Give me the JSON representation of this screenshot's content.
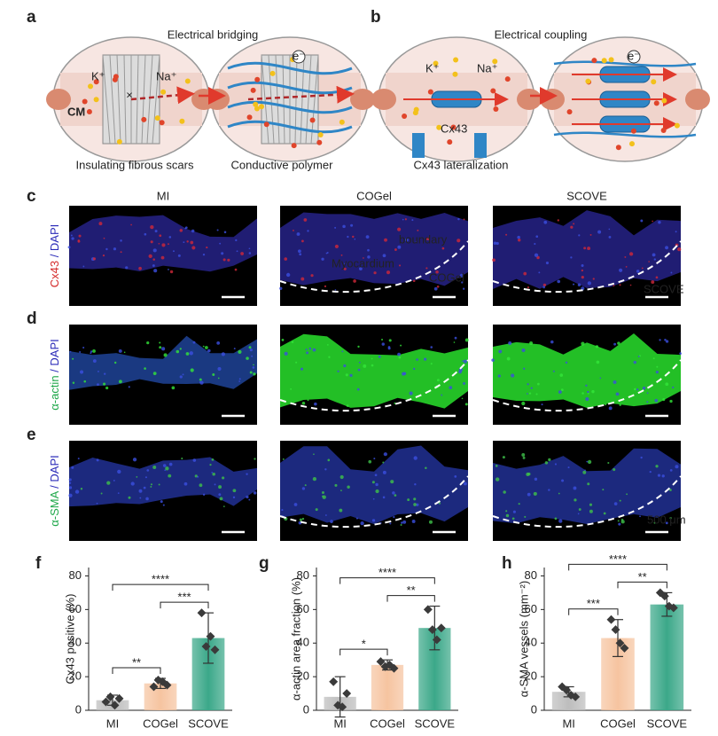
{
  "panels": {
    "a": {
      "letter": "a",
      "title": "Electrical bridging",
      "ions": [
        "K⁺",
        "Na⁺"
      ],
      "cm": "CM",
      "labels": [
        "Insulating fibrous scars",
        "Conductive polymer"
      ]
    },
    "b": {
      "letter": "b",
      "title": "Electrical coupling",
      "ions": [
        "K⁺",
        "Na⁺"
      ],
      "protein": "Cx43",
      "label": "Cx43 lateralization"
    },
    "electron": "e⁻",
    "c": {
      "letter": "c",
      "columns": [
        "MI",
        "COGel",
        "SCOVE"
      ],
      "stain": [
        "Cx43",
        " / DAPI"
      ],
      "annotations": [
        "boundary",
        "Myocardium",
        "COGel",
        "SCOVE"
      ]
    },
    "d": {
      "letter": "d",
      "stain": [
        "α-actin",
        " / DAPI"
      ]
    },
    "e": {
      "letter": "e",
      "stain": [
        "α-SMA",
        " / DAPI"
      ],
      "scale_bar": "500 μm"
    }
  },
  "chart_data": [
    {
      "type": "bar",
      "letter": "f",
      "ylabel": "Cx43 positive (%)",
      "categories": [
        "MI",
        "COGel",
        "SCOVE"
      ],
      "values": [
        6,
        16,
        43
      ],
      "errors": [
        3,
        3,
        15
      ],
      "points": [
        [
          5,
          8,
          3,
          7
        ],
        [
          14,
          18,
          17,
          15
        ],
        [
          58,
          38,
          44,
          36
        ]
      ],
      "colors": [
        "#bdbdbd",
        "#f6c4a0",
        "#3ba889"
      ],
      "ylim": [
        0,
        85
      ],
      "yticks": [
        0,
        20,
        40,
        60,
        80
      ],
      "significance": [
        {
          "from": 0,
          "to": 1,
          "label": "**"
        },
        {
          "from": 1,
          "to": 2,
          "label": "***"
        },
        {
          "from": 0,
          "to": 2,
          "label": "****"
        }
      ]
    },
    {
      "type": "bar",
      "letter": "g",
      "ylabel": "α-actin area fraction (%)",
      "categories": [
        "MI",
        "COGel",
        "SCOVE"
      ],
      "values": [
        8,
        27,
        49
      ],
      "errors": [
        12,
        3,
        13
      ],
      "points": [
        [
          17,
          3,
          2,
          10
        ],
        [
          29,
          26,
          27,
          25
        ],
        [
          60,
          48,
          42,
          49
        ]
      ],
      "colors": [
        "#bdbdbd",
        "#f6c4a0",
        "#3ba889"
      ],
      "ylim": [
        0,
        85
      ],
      "yticks": [
        0,
        20,
        40,
        60,
        80
      ],
      "significance": [
        {
          "from": 0,
          "to": 1,
          "label": "*"
        },
        {
          "from": 1,
          "to": 2,
          "label": "**"
        },
        {
          "from": 0,
          "to": 2,
          "label": "****"
        }
      ]
    },
    {
      "type": "bar",
      "letter": "h",
      "ylabel": "α-SMA vessels (mm⁻²)",
      "categories": [
        "MI",
        "COGel",
        "SCOVE"
      ],
      "values": [
        11,
        43,
        63
      ],
      "errors": [
        3,
        11,
        7
      ],
      "points": [
        [
          14,
          12,
          9,
          8
        ],
        [
          54,
          48,
          40,
          37
        ],
        [
          70,
          68,
          62,
          61
        ]
      ],
      "colors": [
        "#bdbdbd",
        "#f6c4a0",
        "#3ba889"
      ],
      "ylim": [
        0,
        85
      ],
      "yticks": [
        0,
        20,
        40,
        60,
        80
      ],
      "significance": [
        {
          "from": 0,
          "to": 1,
          "label": "***"
        },
        {
          "from": 1,
          "to": 2,
          "label": "**"
        },
        {
          "from": 0,
          "to": 2,
          "label": "****"
        }
      ]
    }
  ]
}
